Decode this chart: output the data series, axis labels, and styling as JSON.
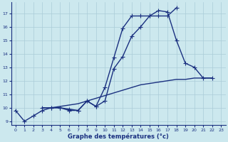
{
  "xlabel": "Graphe des températures (°c)",
  "background_color": "#cce8ee",
  "grid_color": "#aaccd8",
  "line_color": "#1a3080",
  "line1_x": [
    0,
    1,
    2,
    3,
    4,
    5,
    6,
    7,
    8,
    9,
    10,
    11,
    12,
    13,
    14,
    15,
    16,
    17,
    18
  ],
  "line1_y": [
    9.8,
    9.0,
    9.4,
    9.8,
    10.0,
    10.0,
    9.9,
    9.8,
    10.5,
    10.1,
    10.5,
    12.9,
    13.8,
    15.3,
    16.0,
    16.8,
    16.8,
    16.8,
    17.4
  ],
  "line2_x": [
    3,
    4,
    5,
    6,
    7,
    8,
    9,
    10,
    11,
    12,
    13,
    14,
    15,
    16,
    17,
    18,
    19,
    20,
    21,
    22
  ],
  "line2_y": [
    10.0,
    10.0,
    10.0,
    9.8,
    9.8,
    10.5,
    10.1,
    11.5,
    13.7,
    15.9,
    16.8,
    16.8,
    16.8,
    17.2,
    17.1,
    15.0,
    13.3,
    13.0,
    12.2,
    12.2
  ],
  "line3_x": [
    3,
    4,
    5,
    6,
    7,
    8,
    9,
    10,
    11,
    12,
    13,
    14,
    15,
    16,
    17,
    18,
    19,
    20,
    21,
    22
  ],
  "line3_y": [
    10.0,
    10.0,
    10.1,
    10.2,
    10.3,
    10.5,
    10.7,
    10.9,
    11.1,
    11.3,
    11.5,
    11.7,
    11.8,
    11.9,
    12.0,
    12.1,
    12.1,
    12.2,
    12.2,
    12.2
  ],
  "ylim": [
    8.7,
    17.8
  ],
  "yticks": [
    9,
    10,
    11,
    12,
    13,
    14,
    15,
    16,
    17
  ],
  "xticks": [
    0,
    1,
    2,
    3,
    4,
    5,
    6,
    7,
    8,
    9,
    10,
    11,
    12,
    13,
    14,
    15,
    16,
    17,
    18,
    19,
    20,
    21,
    22,
    23
  ],
  "line_width": 1.0,
  "marker": "+",
  "marker_size": 4
}
